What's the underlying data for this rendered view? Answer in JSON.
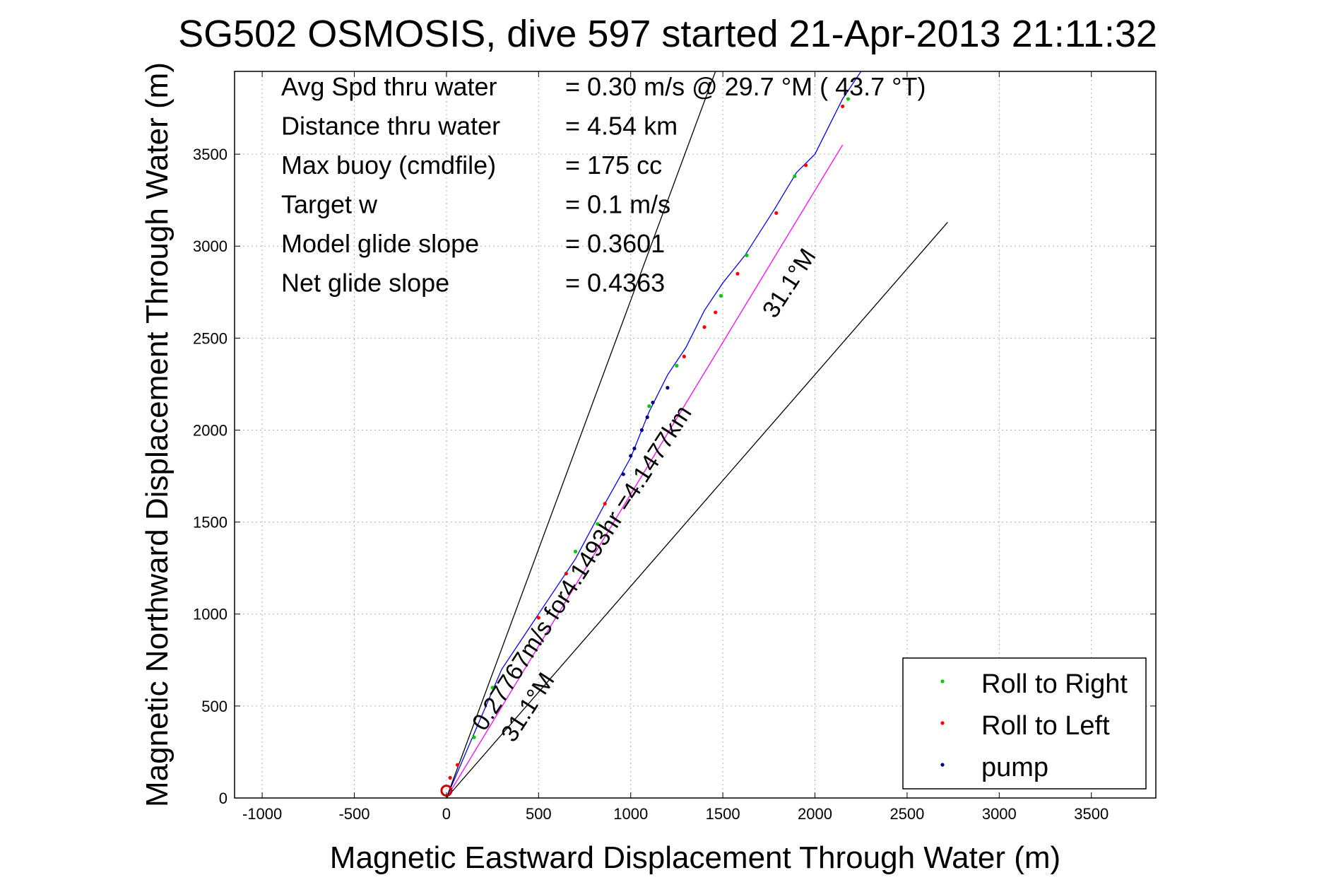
{
  "chart_data": {
    "type": "scatter",
    "title": "SG502 OSMOSIS, dive 597 started 21-Apr-2013 21:11:32",
    "xlabel": "Magnetic Eastward Displacement Through Water (m)",
    "ylabel": "Magnetic Northward Displacement Through Water (m)",
    "xlim": [
      -1150,
      3850
    ],
    "ylim": [
      0,
      3950
    ],
    "xticks": [
      -1000,
      -500,
      0,
      500,
      1000,
      1500,
      2000,
      2500,
      3000,
      3500
    ],
    "xtick_labels": [
      "-1000",
      "-500",
      "0",
      "500",
      "1000",
      "1500",
      "2000",
      "2500",
      "3000",
      "3500"
    ],
    "yticks": [
      0,
      500,
      1000,
      1500,
      2000,
      2500,
      3000,
      3500
    ],
    "ytick_labels": [
      "0",
      "500",
      "1000",
      "1500",
      "2000",
      "2500",
      "3000",
      "3500"
    ],
    "grid": true,
    "legend_position": "bottom-right",
    "legend": [
      {
        "label": "Roll to Right",
        "color": "#00cc00"
      },
      {
        "label": "Roll to Left",
        "color": "#ff0000"
      },
      {
        "label": "pump",
        "color": "#000080"
      }
    ],
    "info_lines": [
      {
        "label": "Avg Spd thru water",
        "value": "=  0.30 m/s @  29.7 °M ( 43.7 °T)"
      },
      {
        "label": "Distance thru water",
        "value": "=  4.54 km"
      },
      {
        "label": "Max buoy (cmdfile)",
        "value": "= 175 cc"
      },
      {
        "label": "Target w",
        "value": "= 0.1 m/s"
      },
      {
        "label": "Model glide slope",
        "value": "= 0.3601"
      },
      {
        "label": "Net glide slope",
        "value": "= 0.4363"
      }
    ],
    "annotations": {
      "track_label": "0.27767m/s for4.1493hr =4.1477km",
      "upper_heading": "31.1°M",
      "lower_heading": "31.1°M"
    },
    "lines": [
      {
        "name": "track",
        "color": "#0000ff",
        "x": [
          0,
          150,
          300,
          500,
          700,
          860,
          1000,
          1100,
          1200,
          1300,
          1400,
          1500,
          1620,
          1780,
          1900,
          2000,
          2150,
          2250
        ],
        "y": [
          0,
          350,
          700,
          1000,
          1300,
          1600,
          1850,
          2100,
          2300,
          2450,
          2650,
          2800,
          2950,
          3200,
          3400,
          3500,
          3800,
          3950
        ]
      },
      {
        "name": "heading",
        "color": "#ff00ff",
        "x": [
          0,
          2150
        ],
        "y": [
          0,
          3550
        ]
      },
      {
        "name": "upper-bound",
        "color": "#000000",
        "x": [
          0,
          1460
        ],
        "y": [
          0,
          3950
        ]
      },
      {
        "name": "lower-bound",
        "color": "#000000",
        "x": [
          0,
          2720
        ],
        "y": [
          0,
          3130
        ]
      }
    ],
    "points": [
      {
        "x": 150,
        "y": 330,
        "color": "#00cc00"
      },
      {
        "x": 700,
        "y": 1340,
        "color": "#00cc00"
      },
      {
        "x": 820,
        "y": 1490,
        "color": "#00cc00"
      },
      {
        "x": 1100,
        "y": 2130,
        "color": "#00cc00"
      },
      {
        "x": 1250,
        "y": 2350,
        "color": "#00cc00"
      },
      {
        "x": 1490,
        "y": 2730,
        "color": "#00cc00"
      },
      {
        "x": 1630,
        "y": 2950,
        "color": "#00cc00"
      },
      {
        "x": 1890,
        "y": 3380,
        "color": "#00cc00"
      },
      {
        "x": 2180,
        "y": 3800,
        "color": "#00cc00"
      },
      {
        "x": 250,
        "y": 600,
        "color": "#00cc00"
      },
      {
        "x": 20,
        "y": 110,
        "color": "#ff0000"
      },
      {
        "x": 60,
        "y": 180,
        "color": "#ff0000"
      },
      {
        "x": 500,
        "y": 980,
        "color": "#ff0000"
      },
      {
        "x": 650,
        "y": 1220,
        "color": "#ff0000"
      },
      {
        "x": 860,
        "y": 1600,
        "color": "#ff0000"
      },
      {
        "x": 1290,
        "y": 2400,
        "color": "#ff0000"
      },
      {
        "x": 1400,
        "y": 2560,
        "color": "#ff0000"
      },
      {
        "x": 1460,
        "y": 2640,
        "color": "#ff0000"
      },
      {
        "x": 1580,
        "y": 2850,
        "color": "#ff0000"
      },
      {
        "x": 1790,
        "y": 3180,
        "color": "#ff0000"
      },
      {
        "x": 1950,
        "y": 3440,
        "color": "#ff0000"
      },
      {
        "x": 2150,
        "y": 3760,
        "color": "#ff0000"
      },
      {
        "x": 960,
        "y": 1760,
        "color": "#000080"
      },
      {
        "x": 1000,
        "y": 1860,
        "color": "#000080"
      },
      {
        "x": 1020,
        "y": 1900,
        "color": "#000080"
      },
      {
        "x": 1060,
        "y": 2000,
        "color": "#000080"
      },
      {
        "x": 1090,
        "y": 2070,
        "color": "#000080"
      },
      {
        "x": 1120,
        "y": 2150,
        "color": "#000080"
      },
      {
        "x": 1200,
        "y": 2230,
        "color": "#000080"
      }
    ],
    "start_marker": {
      "x": 0,
      "y": 40,
      "color": "#cc0000"
    }
  }
}
